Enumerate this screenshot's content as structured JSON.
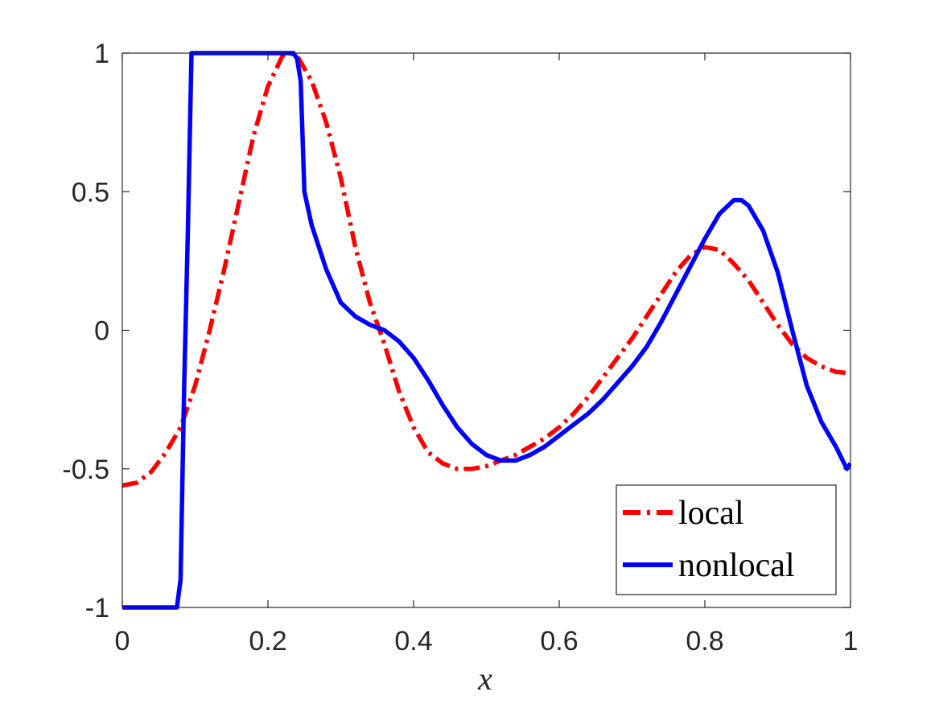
{
  "chart_data": {
    "type": "line",
    "xlabel": "x",
    "ylabel": "",
    "title": "",
    "xlim": [
      0,
      1
    ],
    "ylim": [
      -1,
      1
    ],
    "xticks": [
      "0",
      "0.2",
      "0.4",
      "0.6",
      "0.8",
      "1"
    ],
    "yticks": [
      "1",
      "0.5",
      "0",
      "-0.5",
      "-1"
    ],
    "grid": false,
    "legend_position": "bottom-right",
    "series": [
      {
        "name": "local",
        "color": "#ff0000",
        "style": "dash-dot",
        "x": [
          0,
          0.02,
          0.04,
          0.06,
          0.08,
          0.1,
          0.12,
          0.14,
          0.16,
          0.18,
          0.2,
          0.22,
          0.23,
          0.24,
          0.26,
          0.28,
          0.3,
          0.32,
          0.34,
          0.36,
          0.38,
          0.4,
          0.42,
          0.44,
          0.46,
          0.48,
          0.5,
          0.52,
          0.54,
          0.56,
          0.58,
          0.6,
          0.62,
          0.64,
          0.66,
          0.68,
          0.7,
          0.72,
          0.74,
          0.76,
          0.78,
          0.8,
          0.82,
          0.84,
          0.86,
          0.88,
          0.9,
          0.92,
          0.94,
          0.96,
          0.98,
          1.0
        ],
        "y": [
          -0.56,
          -0.55,
          -0.51,
          -0.44,
          -0.35,
          -0.2,
          0.0,
          0.22,
          0.46,
          0.7,
          0.88,
          0.99,
          1.0,
          0.99,
          0.9,
          0.75,
          0.55,
          0.3,
          0.1,
          -0.05,
          -0.22,
          -0.35,
          -0.44,
          -0.48,
          -0.5,
          -0.5,
          -0.49,
          -0.47,
          -0.45,
          -0.42,
          -0.39,
          -0.35,
          -0.3,
          -0.24,
          -0.17,
          -0.1,
          -0.03,
          0.05,
          0.13,
          0.21,
          0.27,
          0.3,
          0.29,
          0.24,
          0.18,
          0.1,
          0.02,
          -0.05,
          -0.1,
          -0.13,
          -0.15,
          -0.155
        ]
      },
      {
        "name": "nonlocal",
        "color": "#0000ff",
        "style": "solid",
        "x": [
          0,
          0.075,
          0.08,
          0.085,
          0.09,
          0.095,
          0.1,
          0.12,
          0.15,
          0.2,
          0.235,
          0.24,
          0.245,
          0.25,
          0.255,
          0.26,
          0.28,
          0.3,
          0.32,
          0.34,
          0.36,
          0.38,
          0.4,
          0.42,
          0.44,
          0.46,
          0.48,
          0.5,
          0.52,
          0.54,
          0.56,
          0.58,
          0.6,
          0.62,
          0.64,
          0.66,
          0.68,
          0.7,
          0.72,
          0.74,
          0.76,
          0.78,
          0.8,
          0.82,
          0.84,
          0.85,
          0.86,
          0.88,
          0.9,
          0.92,
          0.94,
          0.96,
          0.98,
          0.995,
          1.0
        ],
        "y": [
          -1.0,
          -1.0,
          -0.9,
          -0.2,
          0.35,
          1.0,
          1.0,
          1.0,
          1.0,
          1.0,
          1.0,
          0.98,
          0.9,
          0.5,
          0.44,
          0.38,
          0.22,
          0.1,
          0.05,
          0.02,
          0.0,
          -0.04,
          -0.1,
          -0.18,
          -0.27,
          -0.35,
          -0.41,
          -0.45,
          -0.47,
          -0.47,
          -0.45,
          -0.42,
          -0.38,
          -0.34,
          -0.3,
          -0.25,
          -0.19,
          -0.13,
          -0.06,
          0.03,
          0.13,
          0.23,
          0.33,
          0.42,
          0.47,
          0.47,
          0.45,
          0.36,
          0.21,
          0.0,
          -0.2,
          -0.33,
          -0.42,
          -0.5,
          -0.48
        ]
      }
    ]
  }
}
